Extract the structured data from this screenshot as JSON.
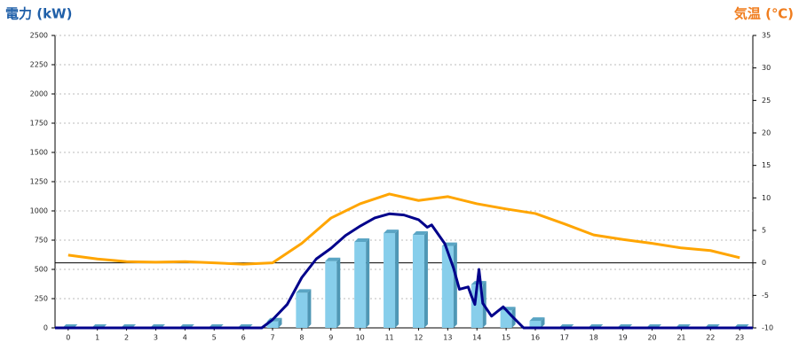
{
  "chart_data": {
    "type": "bar",
    "ylabel": "電力 (kW)",
    "y2label": "気温 (℃)",
    "categories": [
      "0",
      "1",
      "2",
      "3",
      "4",
      "5",
      "6",
      "7",
      "8",
      "9",
      "10",
      "11",
      "12",
      "13",
      "14",
      "15",
      "16",
      "17",
      "18",
      "19",
      "20",
      "21",
      "22",
      "23"
    ],
    "xlim": [
      -0.45,
      23.45
    ],
    "ylim": [
      0,
      2500
    ],
    "yticks": [
      0,
      250,
      500,
      750,
      1000,
      1250,
      1500,
      1750,
      2000,
      2250,
      2500
    ],
    "y2lim": [
      -10,
      35
    ],
    "y2ticks": [
      -10,
      -5,
      0,
      5,
      10,
      15,
      20,
      25,
      30,
      35
    ],
    "grid": true,
    "series": [
      {
        "type": "bar",
        "color": "#87ceeb",
        "values": [
          0,
          0,
          0,
          0,
          0,
          0,
          0,
          55,
          300,
          570,
          735,
          810,
          795,
          700,
          370,
          150,
          60,
          0,
          0,
          0,
          0,
          0,
          0,
          0
        ]
      },
      {
        "type": "line",
        "color": "#00008b",
        "x": [
          -0.45,
          6.63,
          7.0,
          7.5,
          8.0,
          8.5,
          9.0,
          9.5,
          10.0,
          10.5,
          11.0,
          11.5,
          12.0,
          12.3,
          12.45,
          12.9,
          13.2,
          13.4,
          13.7,
          13.8,
          13.93,
          14.07,
          14.2,
          14.5,
          14.9,
          15.2,
          15.6,
          23.45
        ],
        "values": [
          0,
          0,
          70,
          200,
          430,
          590,
          680,
          790,
          870,
          940,
          975,
          965,
          925,
          860,
          880,
          720,
          510,
          330,
          350,
          280,
          200,
          500,
          210,
          100,
          180,
          100,
          0,
          0
        ]
      },
      {
        "type": "line",
        "axis": "y2",
        "color": "#ffa500",
        "values": [
          1.2,
          0.6,
          0.2,
          0.1,
          0.2,
          0,
          -0.2,
          0,
          3,
          6.9,
          9.1,
          10.6,
          9.6,
          10.2,
          9.1,
          8.3,
          7.6,
          6,
          4.3,
          3.6,
          3,
          2.3,
          1.9,
          0.8
        ]
      }
    ]
  }
}
